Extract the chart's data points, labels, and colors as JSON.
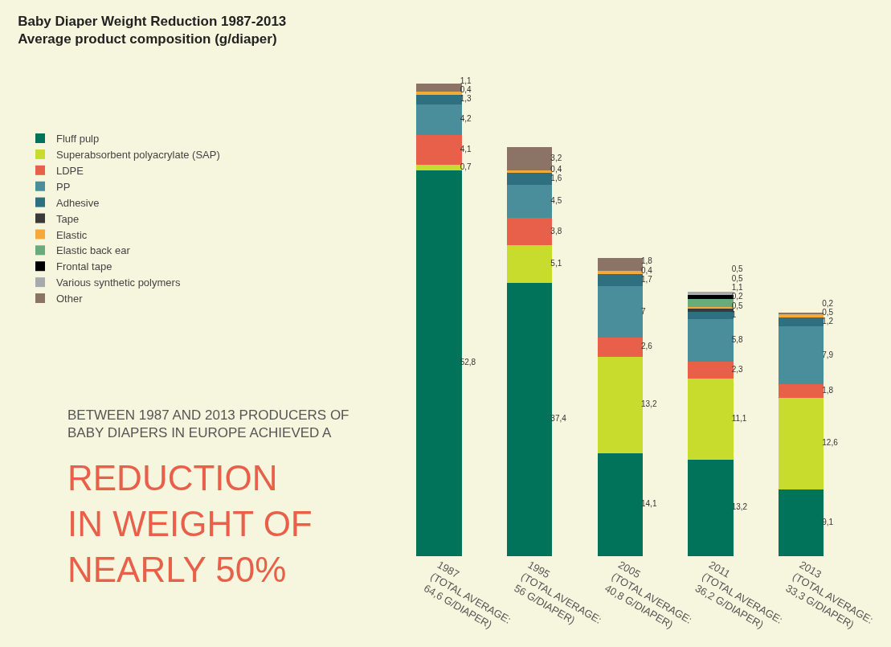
{
  "chart_data": {
    "type": "bar",
    "title": "Baby Diaper Weight Reduction 1987-2013",
    "subtitle": "Average product composition (g/diaper)",
    "categories": [
      "1987\n(TOTAL AVERAGE:\n64,6 G/DIAPER)",
      "1995\n(TOTAL AVERAGE:\n56 G/DIAPER)",
      "2005\n(TOTAL AVERAGE:\n40,8 G/DIAPER)",
      "2011\n(TOTAL AVERAGE:\n36,2 G/DIAPER)",
      "2013\n(TOTAL AVERAGE:\n33,3 G/DIAPER)"
    ],
    "stacked": true,
    "legend": "top left",
    "grid": false,
    "tick_labels": "x",
    "series": [
      {
        "name": "Fluff pulp",
        "color": "#00735a",
        "values": [
          52.8,
          37.4,
          14.1,
          13.2,
          9.1
        ],
        "value_labels": [
          "52,8",
          "37,4",
          "14,1",
          "13,2",
          "9,1"
        ]
      },
      {
        "name": "Superabsorbent polyacrylate (SAP)",
        "color": "#c8dc2d",
        "values": [
          0.7,
          5.1,
          13.2,
          11.1,
          12.6
        ],
        "value_labels": [
          "0,7",
          "5,1",
          "13,2",
          "11,1",
          "12,6"
        ]
      },
      {
        "name": "LDPE",
        "color": "#e8604a",
        "values": [
          4.1,
          3.8,
          2.6,
          2.3,
          1.8
        ],
        "value_labels": [
          "4,1",
          "3,8",
          "2,6",
          "2,3",
          "1,8"
        ]
      },
      {
        "name": "PP",
        "color": "#4a8e9c",
        "values": [
          4.2,
          4.5,
          7,
          5.8,
          7.9
        ],
        "value_labels": [
          "4,2",
          "4,5",
          "7",
          "5,8",
          "7,9"
        ]
      },
      {
        "name": "Adhesive",
        "color": "#2e6f80",
        "values": [
          1.3,
          1.6,
          1.7,
          1,
          1.2
        ],
        "value_labels": [
          "1,3",
          "1,6",
          "1,7",
          "1",
          "1,2"
        ]
      },
      {
        "name": "Tape",
        "color": "#3a3a3a",
        "values": [
          null,
          null,
          null,
          0.5,
          null
        ],
        "value_labels": [
          null,
          null,
          null,
          "0,5",
          null
        ]
      },
      {
        "name": "Elastic",
        "color": "#f5a93a",
        "values": [
          0.4,
          0.4,
          0.4,
          0.2,
          0.5
        ],
        "value_labels": [
          "0,4",
          "0,4",
          "0,4",
          "0,2",
          "0,5"
        ]
      },
      {
        "name": "Elastic back ear",
        "color": "#6aaa7c",
        "values": [
          null,
          null,
          null,
          1.1,
          null
        ],
        "value_labels": [
          null,
          null,
          null,
          "1,1",
          null
        ]
      },
      {
        "name": "Frontal tape",
        "color": "#000000",
        "values": [
          null,
          null,
          null,
          0.5,
          null
        ],
        "value_labels": [
          null,
          null,
          null,
          "0,5",
          null
        ]
      },
      {
        "name": "Various synthetic polymers",
        "color": "#a8a9ad",
        "values": [
          null,
          null,
          null,
          0.5,
          null
        ],
        "value_labels": [
          null,
          null,
          null,
          "0,5",
          null
        ]
      },
      {
        "name": "Other",
        "color": "#8b7366",
        "values": [
          1.1,
          3.2,
          1.8,
          null,
          0.2
        ],
        "value_labels": [
          "1,1",
          "3,2",
          "1,8",
          null,
          "0,2"
        ]
      }
    ],
    "annotations": [
      "BETWEEN 1987 AND 2013 PRODUCERS OF\nBABY DIAPERS IN EUROPE ACHIEVED A",
      "REDUCTION\nIN WEIGHT OF\nNEARLY 50%"
    ]
  }
}
